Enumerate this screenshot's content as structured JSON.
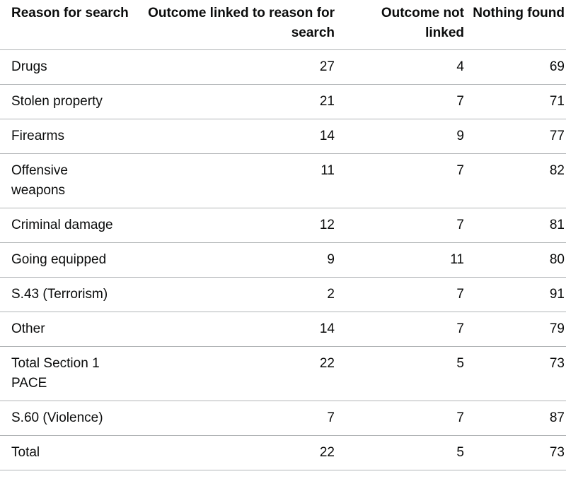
{
  "table": {
    "headers": [
      "Reason for search",
      "Outcome linked to reason for search",
      "Outcome not linked",
      "Nothing found"
    ],
    "rows": [
      {
        "reason": "Drugs",
        "linked": "27",
        "not_linked": "4",
        "nothing": "69"
      },
      {
        "reason": "Stolen property",
        "linked": "21",
        "not_linked": "7",
        "nothing": "71"
      },
      {
        "reason": "Firearms",
        "linked": "14",
        "not_linked": "9",
        "nothing": "77"
      },
      {
        "reason": "Offensive weapons",
        "linked": "11",
        "not_linked": "7",
        "nothing": "82"
      },
      {
        "reason": "Criminal damage",
        "linked": "12",
        "not_linked": "7",
        "nothing": "81"
      },
      {
        "reason": "Going equipped",
        "linked": "9",
        "not_linked": "11",
        "nothing": "80"
      },
      {
        "reason": "S.43 (Terrorism)",
        "linked": "2",
        "not_linked": "7",
        "nothing": "91"
      },
      {
        "reason": "Other",
        "linked": "14",
        "not_linked": "7",
        "nothing": "79"
      },
      {
        "reason": "Total Section 1 PACE",
        "linked": "22",
        "not_linked": "5",
        "nothing": "73"
      },
      {
        "reason": "S.60 (Violence)",
        "linked": "7",
        "not_linked": "7",
        "nothing": "87"
      },
      {
        "reason": "Total",
        "linked": "22",
        "not_linked": "5",
        "nothing": "73"
      }
    ]
  }
}
